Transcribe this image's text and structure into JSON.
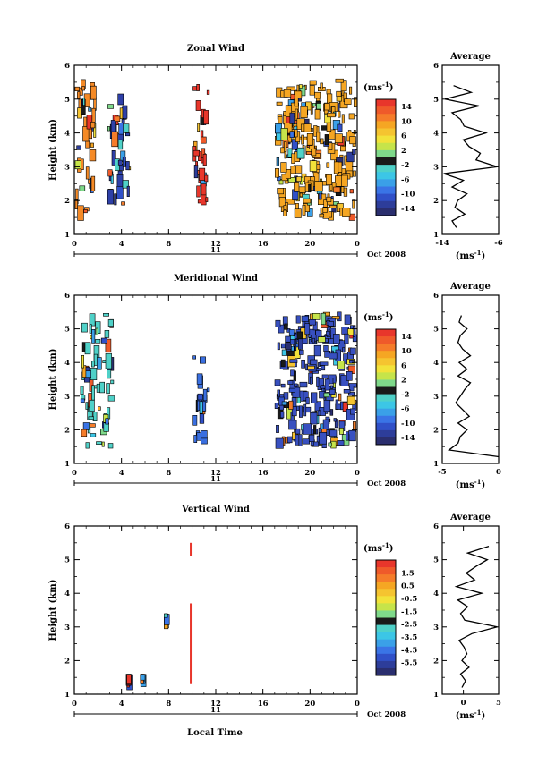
{
  "page": {
    "shared_x_label": "Local Time"
  },
  "chart_data": [
    {
      "type": "heatmap",
      "title": "Zonal Wind",
      "ylabel": "Height (km)",
      "ylim": [
        1,
        6
      ],
      "yticks": [
        "1",
        "2",
        "3",
        "4",
        "5",
        "6"
      ],
      "xlim": [
        0,
        24
      ],
      "xticks": [
        "0",
        "4",
        "8",
        "12",
        "16",
        "20",
        "0"
      ],
      "date_day": "11",
      "date_label": "Oct 2008",
      "colorbar": {
        "unit": "(ms",
        "unit_sup": "-1",
        "unit_close": ")",
        "min": -16,
        "max": 16,
        "labels": [
          "14",
          "10",
          "6",
          "2",
          "-2",
          "-6",
          "-10",
          "-14"
        ]
      },
      "regions": [
        {
          "x": [
            0.0,
            2.0
          ],
          "y": [
            1.4,
            5.6
          ],
          "color": "#f58a26",
          "density": "sparse"
        },
        {
          "x": [
            2.8,
            4.8
          ],
          "y": [
            1.6,
            5.2
          ],
          "color": "#2e40a8",
          "density": "sparse"
        },
        {
          "x": [
            10.0,
            11.5
          ],
          "y": [
            1.6,
            5.5
          ],
          "color": "#e8362b",
          "density": "sparse"
        },
        {
          "x": [
            17.0,
            24.0
          ],
          "y": [
            1.4,
            5.6
          ],
          "color": "#f5a623",
          "density": "dense"
        }
      ],
      "profile": {
        "title": "Average",
        "xlim": [
          -14,
          -6
        ],
        "xticks": [
          "-14",
          "-6"
        ],
        "xunit": "(ms",
        "xunit_sup": "-1",
        "xunit_close": ")",
        "heights": [
          1.2,
          1.4,
          1.6,
          1.8,
          2.0,
          2.2,
          2.4,
          2.6,
          2.8,
          3.0,
          3.2,
          3.4,
          3.6,
          3.8,
          4.0,
          4.2,
          4.4,
          4.6,
          4.8,
          5.0,
          5.2,
          5.4
        ],
        "values": [
          -12.0,
          -12.6,
          -10.8,
          -12.2,
          -11.8,
          -10.5,
          -12.6,
          -11.0,
          -13.8,
          -6.2,
          -9.2,
          -8.6,
          -10.2,
          -11.0,
          -7.8,
          -10.9,
          -11.4,
          -12.6,
          -8.8,
          -13.6,
          -9.9,
          -12.4
        ]
      }
    },
    {
      "type": "heatmap",
      "title": "Meridional Wind",
      "ylabel": "Height (km)",
      "ylim": [
        1,
        6
      ],
      "yticks": [
        "1",
        "2",
        "3",
        "4",
        "5",
        "6"
      ],
      "xlim": [
        0,
        24
      ],
      "xticks": [
        "0",
        "4",
        "8",
        "12",
        "16",
        "20",
        "0"
      ],
      "date_day": "11",
      "date_label": "Oct 2008",
      "colorbar": {
        "unit": "(ms",
        "unit_sup": "-1",
        "unit_close": ")",
        "min": -16,
        "max": 16,
        "labels": [
          "14",
          "10",
          "6",
          "2",
          "-2",
          "-6",
          "-10",
          "-14"
        ]
      },
      "regions": [
        {
          "x": [
            0.5,
            3.5
          ],
          "y": [
            1.4,
            5.5
          ],
          "color": "#4fd1c8",
          "density": "sparse"
        },
        {
          "x": [
            10.0,
            11.5
          ],
          "y": [
            1.5,
            4.2
          ],
          "color": "#3a6fe0",
          "density": "sparse"
        },
        {
          "x": [
            17.0,
            24.0
          ],
          "y": [
            1.4,
            5.5
          ],
          "color": "#3850c0",
          "density": "dense"
        }
      ],
      "profile": {
        "title": "Average",
        "xlim": [
          -5,
          0
        ],
        "xticks": [
          "-5",
          "0"
        ],
        "xunit": "(ms",
        "xunit_sup": "-1",
        "xunit_close": ")",
        "heights": [
          1.2,
          1.4,
          1.6,
          1.8,
          2.0,
          2.2,
          2.4,
          2.6,
          2.8,
          3.0,
          3.2,
          3.4,
          3.6,
          3.8,
          4.0,
          4.2,
          4.4,
          4.6,
          4.8,
          5.0,
          5.2,
          5.4
        ],
        "values": [
          0.0,
          -4.4,
          -3.6,
          -3.4,
          -2.8,
          -3.6,
          -2.6,
          -3.2,
          -3.8,
          -3.4,
          -3.0,
          -2.5,
          -3.6,
          -2.8,
          -3.5,
          -2.5,
          -3.2,
          -3.6,
          -3.4,
          -2.8,
          -3.5,
          -3.3
        ]
      }
    },
    {
      "type": "heatmap",
      "title": "Vertical Wind",
      "ylabel": "Height (km)",
      "ylim": [
        1,
        6
      ],
      "yticks": [
        "1",
        "2",
        "3",
        "4",
        "5",
        "6"
      ],
      "xlim": [
        0,
        24
      ],
      "xticks": [
        "0",
        "4",
        "8",
        "12",
        "16",
        "20",
        "0"
      ],
      "date_day": "11",
      "date_label": "Oct 2008",
      "xlabel": "Local Time",
      "colorbar": {
        "unit": "(ms",
        "unit_sup": "-1",
        "unit_close": ")",
        "min": -6.5,
        "max": 2.5,
        "labels": [
          "1.5",
          "0.5",
          "-0.5",
          "-1.5",
          "-2.5",
          "-3.5",
          "-4.5",
          "-5.5"
        ]
      },
      "regions": [
        {
          "x": [
            4.4,
            4.6
          ],
          "y": [
            1.5,
            1.6
          ],
          "color": "#e8362b",
          "density": "sparse"
        },
        {
          "x": [
            5.6,
            5.8
          ],
          "y": [
            1.5,
            1.6
          ],
          "color": "#3aa0e8",
          "density": "sparse"
        },
        {
          "x": [
            7.6,
            7.9
          ],
          "y": [
            3.2,
            3.4
          ],
          "color": "#4fd1c8",
          "density": "sparse"
        },
        {
          "x": [
            9.8,
            10.0
          ],
          "y": [
            1.3,
            3.7
          ],
          "color": "#e8362b",
          "density": "column"
        },
        {
          "x": [
            9.8,
            10.0
          ],
          "y": [
            5.1,
            5.5
          ],
          "color": "#e8362b",
          "density": "column"
        }
      ],
      "profile": {
        "title": "Average",
        "xlim": [
          -3,
          5
        ],
        "xticks": [
          "0",
          "5"
        ],
        "xunit": "(ms",
        "xunit_sup": "-1",
        "xunit_close": ")",
        "heights": [
          1.2,
          1.4,
          1.6,
          1.8,
          2.0,
          2.2,
          2.4,
          2.6,
          2.8,
          3.0,
          3.2,
          3.4,
          3.6,
          3.8,
          4.0,
          4.2,
          4.4,
          4.6,
          4.8,
          5.0,
          5.2,
          5.4
        ],
        "values": [
          -0.2,
          0.3,
          -0.4,
          0.8,
          -0.2,
          0.5,
          0.1,
          -0.6,
          1.2,
          4.8,
          0.2,
          -0.4,
          0.6,
          -0.8,
          2.6,
          -1.0,
          1.6,
          0.4,
          1.8,
          3.4,
          0.6,
          3.6
        ]
      }
    }
  ]
}
